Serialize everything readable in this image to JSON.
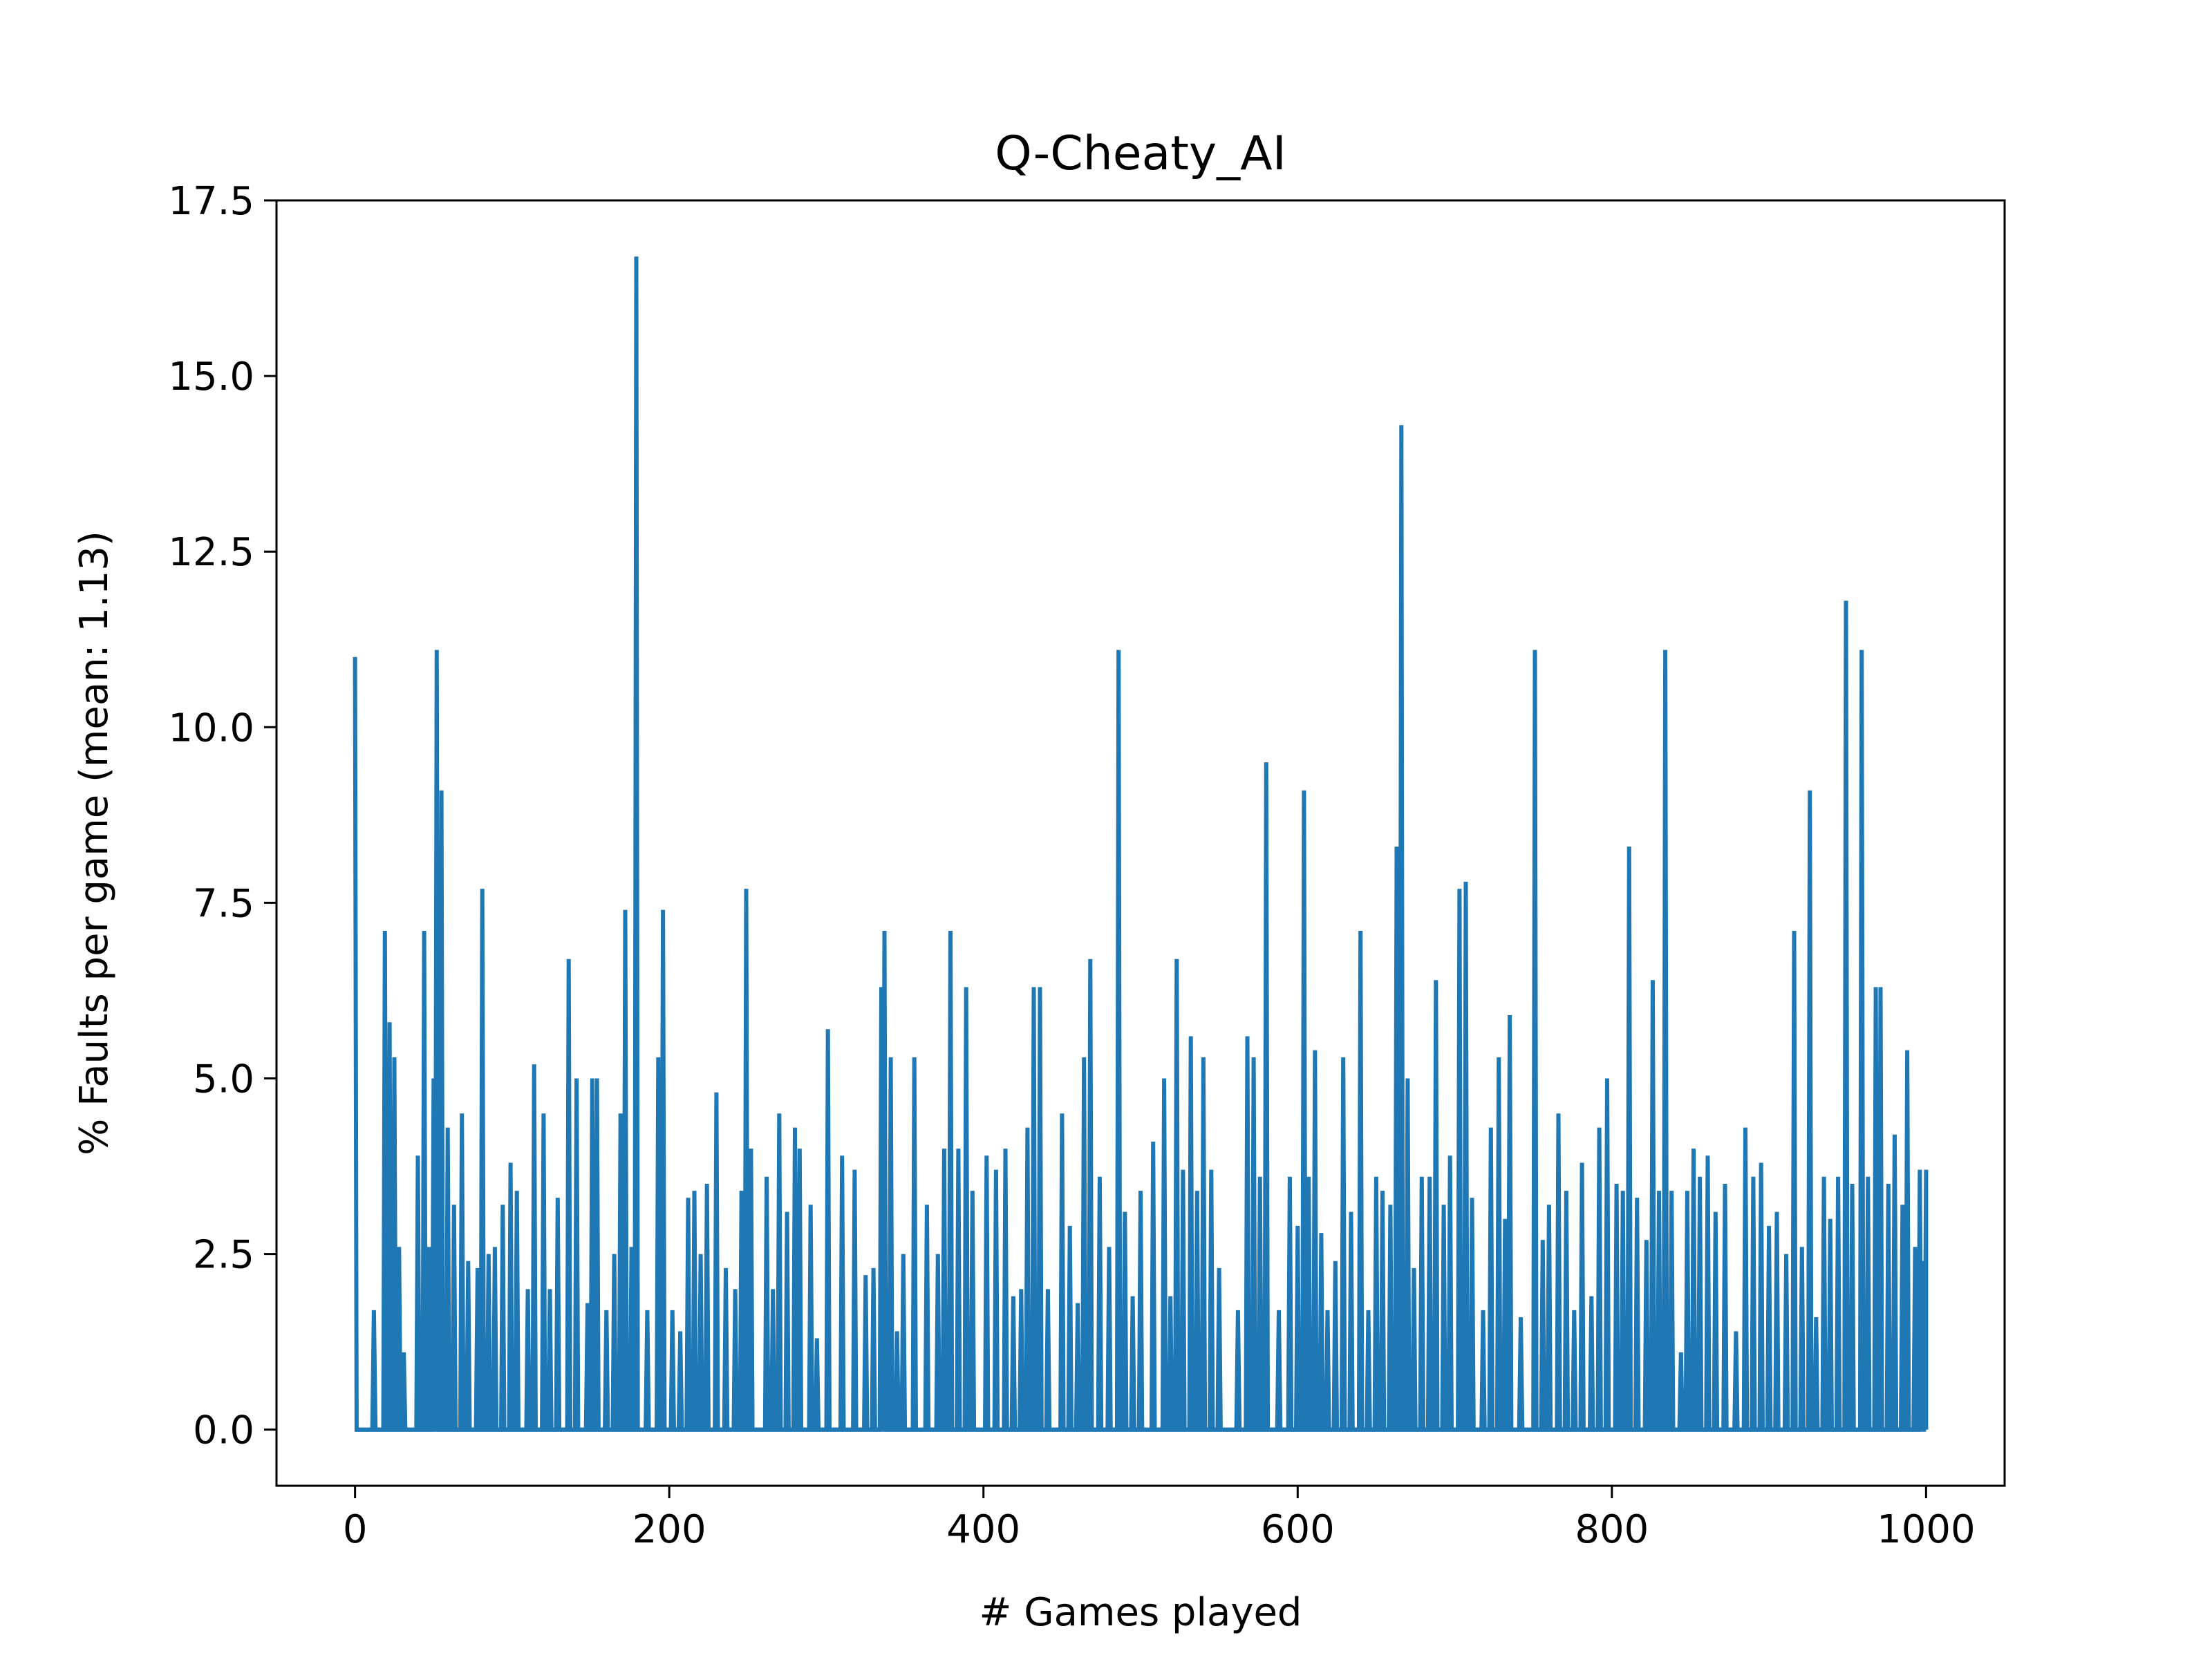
{
  "chart_data": {
    "type": "line",
    "title": "Q-Cheaty_AI",
    "xlabel": "# Games played",
    "ylabel": "% Faults per game (mean: 1.13)",
    "xlim": [
      -50,
      1050
    ],
    "ylim": [
      -0.8,
      17.5
    ],
    "xticks": [
      0,
      200,
      400,
      600,
      800,
      1000
    ],
    "yticks": [
      0.0,
      2.5,
      5.0,
      7.5,
      10.0,
      12.5,
      15.0,
      17.5
    ],
    "xtick_labels": [
      "0",
      "200",
      "400",
      "600",
      "800",
      "1000"
    ],
    "ytick_labels": [
      "0.0",
      "2.5",
      "5.0",
      "7.5",
      "10.0",
      "12.5",
      "15.0",
      "17.5"
    ],
    "grid": false,
    "legend": "none",
    "series": [
      {
        "color": "#1f77b4",
        "spikes": [
          [
            0,
            11.0
          ],
          [
            12,
            1.7
          ],
          [
            19,
            7.1
          ],
          [
            22,
            5.8
          ],
          [
            25,
            5.3
          ],
          [
            28,
            2.6
          ],
          [
            31,
            1.1
          ],
          [
            40,
            3.9
          ],
          [
            44,
            7.1
          ],
          [
            47,
            2.6
          ],
          [
            50,
            5.0
          ],
          [
            52,
            11.1
          ],
          [
            55,
            9.1
          ],
          [
            59,
            4.3
          ],
          [
            63,
            3.2
          ],
          [
            68,
            4.5
          ],
          [
            72,
            2.4
          ],
          [
            78,
            2.3
          ],
          [
            81,
            7.7
          ],
          [
            85,
            2.5
          ],
          [
            89,
            2.6
          ],
          [
            94,
            3.2
          ],
          [
            99,
            3.8
          ],
          [
            103,
            3.4
          ],
          [
            110,
            2.0
          ],
          [
            114,
            5.2
          ],
          [
            120,
            4.5
          ],
          [
            124,
            2.0
          ],
          [
            129,
            3.3
          ],
          [
            136,
            6.7
          ],
          [
            141,
            5.0
          ],
          [
            148,
            1.8
          ],
          [
            151,
            5.0
          ],
          [
            154,
            5.0
          ],
          [
            160,
            1.7
          ],
          [
            165,
            2.5
          ],
          [
            169,
            4.5
          ],
          [
            172,
            7.4
          ],
          [
            176,
            2.6
          ],
          [
            179,
            16.7
          ],
          [
            186,
            1.7
          ],
          [
            193,
            5.3
          ],
          [
            196,
            7.4
          ],
          [
            202,
            1.7
          ],
          [
            207,
            1.4
          ],
          [
            212,
            3.3
          ],
          [
            216,
            3.4
          ],
          [
            220,
            2.5
          ],
          [
            224,
            3.5
          ],
          [
            230,
            4.8
          ],
          [
            236,
            2.3
          ],
          [
            242,
            2.0
          ],
          [
            246,
            3.4
          ],
          [
            249,
            7.7
          ],
          [
            252,
            4.0
          ],
          [
            262,
            3.6
          ],
          [
            266,
            2.0
          ],
          [
            270,
            4.5
          ],
          [
            275,
            3.1
          ],
          [
            280,
            4.3
          ],
          [
            283,
            4.0
          ],
          [
            290,
            3.2
          ],
          [
            294,
            1.3
          ],
          [
            301,
            5.7
          ],
          [
            310,
            3.9
          ],
          [
            318,
            3.7
          ],
          [
            325,
            2.2
          ],
          [
            330,
            2.3
          ],
          [
            335,
            6.3
          ],
          [
            337,
            7.1
          ],
          [
            341,
            5.3
          ],
          [
            345,
            1.4
          ],
          [
            349,
            2.5
          ],
          [
            356,
            5.3
          ],
          [
            364,
            3.2
          ],
          [
            371,
            2.5
          ],
          [
            375,
            4.0
          ],
          [
            379,
            7.1
          ],
          [
            384,
            4.0
          ],
          [
            389,
            6.3
          ],
          [
            393,
            3.4
          ],
          [
            402,
            3.9
          ],
          [
            408,
            3.7
          ],
          [
            414,
            4.0
          ],
          [
            419,
            1.9
          ],
          [
            424,
            2.0
          ],
          [
            428,
            4.3
          ],
          [
            432,
            6.3
          ],
          [
            436,
            6.3
          ],
          [
            441,
            2.0
          ],
          [
            450,
            4.5
          ],
          [
            455,
            2.9
          ],
          [
            460,
            1.8
          ],
          [
            464,
            5.3
          ],
          [
            468,
            6.7
          ],
          [
            474,
            3.6
          ],
          [
            480,
            2.6
          ],
          [
            486,
            11.1
          ],
          [
            490,
            3.1
          ],
          [
            495,
            1.9
          ],
          [
            500,
            3.4
          ],
          [
            508,
            4.1
          ],
          [
            515,
            5.0
          ],
          [
            519,
            1.9
          ],
          [
            523,
            6.7
          ],
          [
            527,
            3.7
          ],
          [
            532,
            5.6
          ],
          [
            536,
            3.4
          ],
          [
            540,
            5.3
          ],
          [
            545,
            3.7
          ],
          [
            550,
            2.3
          ],
          [
            562,
            1.7
          ],
          [
            568,
            5.6
          ],
          [
            572,
            5.3
          ],
          [
            576,
            3.6
          ],
          [
            580,
            9.5
          ],
          [
            588,
            1.7
          ],
          [
            595,
            3.6
          ],
          [
            600,
            2.9
          ],
          [
            604,
            9.1
          ],
          [
            607,
            3.6
          ],
          [
            611,
            5.4
          ],
          [
            615,
            2.8
          ],
          [
            619,
            1.7
          ],
          [
            624,
            2.4
          ],
          [
            629,
            5.3
          ],
          [
            634,
            3.1
          ],
          [
            640,
            7.1
          ],
          [
            645,
            1.7
          ],
          [
            650,
            3.6
          ],
          [
            654,
            3.4
          ],
          [
            659,
            3.2
          ],
          [
            663,
            8.3
          ],
          [
            666,
            14.3
          ],
          [
            670,
            5.0
          ],
          [
            674,
            2.3
          ],
          [
            679,
            3.6
          ],
          [
            684,
            3.6
          ],
          [
            688,
            6.4
          ],
          [
            693,
            3.2
          ],
          [
            697,
            3.9
          ],
          [
            703,
            7.7
          ],
          [
            707,
            7.8
          ],
          [
            711,
            3.3
          ],
          [
            718,
            1.7
          ],
          [
            723,
            4.3
          ],
          [
            728,
            5.3
          ],
          [
            732,
            3.0
          ],
          [
            735,
            5.9
          ],
          [
            742,
            1.6
          ],
          [
            751,
            11.1
          ],
          [
            756,
            2.7
          ],
          [
            760,
            3.2
          ],
          [
            766,
            4.5
          ],
          [
            771,
            3.4
          ],
          [
            776,
            1.7
          ],
          [
            781,
            3.8
          ],
          [
            787,
            1.9
          ],
          [
            792,
            4.3
          ],
          [
            797,
            5.0
          ],
          [
            803,
            3.5
          ],
          [
            807,
            3.4
          ],
          [
            811,
            8.3
          ],
          [
            816,
            3.3
          ],
          [
            822,
            2.7
          ],
          [
            826,
            6.4
          ],
          [
            830,
            3.4
          ],
          [
            834,
            11.1
          ],
          [
            838,
            3.4
          ],
          [
            844,
            1.1
          ],
          [
            848,
            3.4
          ],
          [
            852,
            4.0
          ],
          [
            856,
            3.6
          ],
          [
            861,
            3.9
          ],
          [
            866,
            3.1
          ],
          [
            872,
            3.5
          ],
          [
            879,
            1.4
          ],
          [
            885,
            4.3
          ],
          [
            890,
            3.6
          ],
          [
            895,
            3.8
          ],
          [
            900,
            2.9
          ],
          [
            905,
            3.1
          ],
          [
            911,
            2.5
          ],
          [
            916,
            7.1
          ],
          [
            921,
            2.6
          ],
          [
            926,
            9.1
          ],
          [
            930,
            1.6
          ],
          [
            935,
            3.6
          ],
          [
            939,
            3.0
          ],
          [
            944,
            3.6
          ],
          [
            949,
            11.8
          ],
          [
            953,
            3.5
          ],
          [
            959,
            11.1
          ],
          [
            963,
            3.6
          ],
          [
            968,
            6.3
          ],
          [
            971,
            6.3
          ],
          [
            976,
            3.5
          ],
          [
            980,
            4.2
          ],
          [
            985,
            3.2
          ],
          [
            988,
            5.4
          ],
          [
            993,
            2.6
          ],
          [
            996,
            3.7
          ],
          [
            998,
            2.4
          ],
          [
            1000,
            3.7
          ]
        ]
      }
    ]
  }
}
